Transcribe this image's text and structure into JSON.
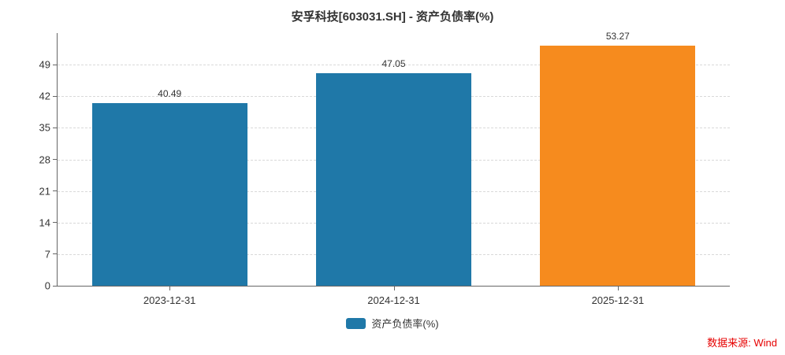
{
  "chart_data": {
    "type": "bar",
    "title": "安孚科技[603031.SH] - 资产负债率(%)",
    "categories": [
      "2023-12-31",
      "2024-12-31",
      "2025-12-31"
    ],
    "values": [
      40.49,
      47.05,
      53.27
    ],
    "value_labels": [
      "40.49",
      "47.05",
      "53.27"
    ],
    "bar_colors": [
      "#1f78a8",
      "#1f78a8",
      "#f68b1e"
    ],
    "yticks": [
      0,
      7,
      14,
      21,
      28,
      35,
      42,
      49
    ],
    "ylim": [
      0,
      56
    ],
    "xlabel": "",
    "ylabel": "",
    "grid": "horizontal-dashed",
    "legend_position": "bottom-center",
    "legend": [
      {
        "label": "资产负债率(%)",
        "color": "#1f78a8"
      }
    ]
  },
  "legend": {
    "label": "资产负债率(%)",
    "color": "#1f78a8"
  },
  "source": "数据来源: Wind",
  "colors": {
    "bar_blue": "#1f78a8",
    "bar_orange": "#f68b1e",
    "axis": "#666666",
    "grid": "#d9d9d9",
    "text": "#333333",
    "source_red": "#e60000",
    "background": "#ffffff"
  }
}
